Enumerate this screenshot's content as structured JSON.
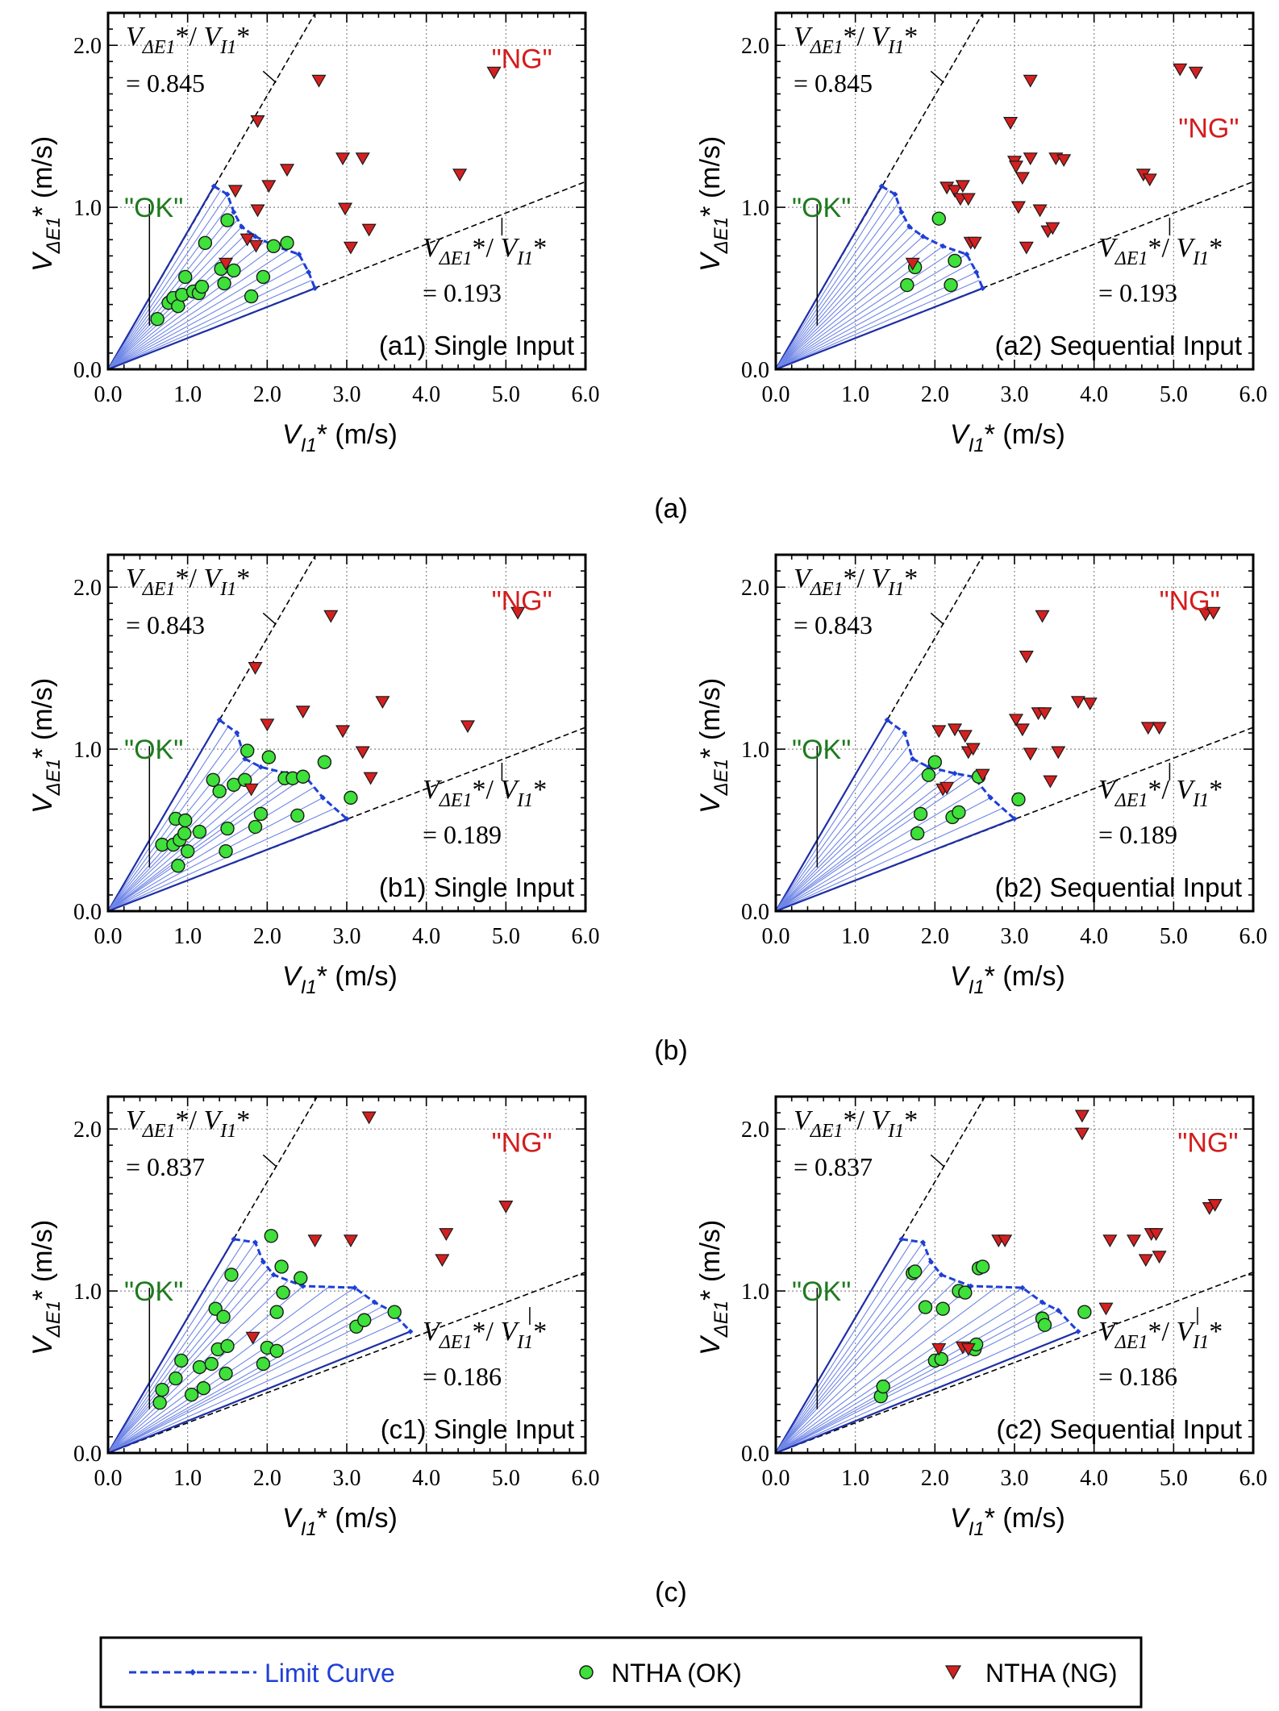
{
  "axes_text": {
    "x_tick_labels": [
      "0.0",
      "1.0",
      "2.0",
      "3.0",
      "4.0",
      "5.0",
      "6.0"
    ],
    "y_tick_labels": [
      "0.0",
      "1.0",
      "2.0"
    ],
    "x_label_main": "V",
    "x_label_sub": "I1",
    "x_label_rest": "* (m/s)",
    "y_label_main": "V",
    "y_label_sub": "ΔE1",
    "y_label_rest": "* (m/s)",
    "ratio_main": "V",
    "ratio_sub_e": "ΔE1",
    "ratio_mid": "*/ ",
    "ratio_sub_i": "I1",
    "ratio_star": "*",
    "ok_label": "\"OK\"",
    "ng_label": "\"NG\""
  },
  "group_labels": [
    "(a)",
    "(b)",
    "(c)"
  ],
  "legend": {
    "limit_curve": "Limit Curve",
    "ok": "NTHA (OK)",
    "ng": "NTHA (NG)"
  },
  "colors": {
    "limit_curve": "#1f3fd6",
    "fan_lines": "#6f86e6",
    "ok_fill": "#3ee03a",
    "ng_fill": "#d42020",
    "ok_text": "#1e7a1e",
    "ng_text": "#d41c1c",
    "grid": "#888888",
    "ref_line": "#000000"
  },
  "chart_data": [
    {
      "type": "scatter",
      "panel_title": "(a1) Single Input",
      "xlim": [
        0,
        6
      ],
      "ylim": [
        0,
        2.2
      ],
      "grid": true,
      "upper_ratio": "= 0.845",
      "lower_ratio": "= 0.193",
      "upper_slope": 0.845,
      "lower_slope": 0.193,
      "limit_curve": [
        [
          1.33,
          1.13
        ],
        [
          1.5,
          1.08
        ],
        [
          1.58,
          0.97
        ],
        [
          1.68,
          0.88
        ],
        [
          1.85,
          0.82
        ],
        [
          2.1,
          0.76
        ],
        [
          2.4,
          0.71
        ],
        [
          2.52,
          0.6
        ],
        [
          2.6,
          0.5
        ]
      ],
      "ok_points": [
        [
          0.62,
          0.31
        ],
        [
          0.76,
          0.41
        ],
        [
          0.82,
          0.44
        ],
        [
          0.88,
          0.39
        ],
        [
          0.93,
          0.46
        ],
        [
          0.97,
          0.57
        ],
        [
          1.07,
          0.48
        ],
        [
          1.14,
          0.47
        ],
        [
          1.18,
          0.51
        ],
        [
          1.22,
          0.78
        ],
        [
          1.42,
          0.62
        ],
        [
          1.46,
          0.53
        ],
        [
          1.5,
          0.92
        ],
        [
          1.58,
          0.61
        ],
        [
          1.8,
          0.45
        ],
        [
          1.95,
          0.57
        ],
        [
          2.08,
          0.76
        ],
        [
          2.25,
          0.78
        ]
      ],
      "ng_points": [
        [
          1.48,
          0.65
        ],
        [
          1.6,
          1.1
        ],
        [
          1.75,
          0.8
        ],
        [
          1.86,
          0.76
        ],
        [
          1.88,
          0.98
        ],
        [
          1.88,
          1.53
        ],
        [
          2.02,
          1.13
        ],
        [
          2.25,
          1.23
        ],
        [
          2.65,
          1.78
        ],
        [
          2.95,
          1.3
        ],
        [
          2.98,
          0.99
        ],
        [
          3.05,
          0.75
        ],
        [
          3.2,
          1.3
        ],
        [
          3.28,
          0.86
        ],
        [
          4.42,
          1.2
        ],
        [
          4.85,
          1.83
        ]
      ]
    },
    {
      "type": "scatter",
      "panel_title": "(a2) Sequential Input",
      "xlim": [
        0,
        6
      ],
      "ylim": [
        0,
        2.2
      ],
      "grid": true,
      "upper_ratio": "= 0.845",
      "lower_ratio": "= 0.193",
      "upper_slope": 0.845,
      "lower_slope": 0.193,
      "limit_curve": [
        [
          1.33,
          1.13
        ],
        [
          1.5,
          1.08
        ],
        [
          1.58,
          0.97
        ],
        [
          1.68,
          0.88
        ],
        [
          1.85,
          0.82
        ],
        [
          2.1,
          0.76
        ],
        [
          2.4,
          0.71
        ],
        [
          2.52,
          0.6
        ],
        [
          2.6,
          0.5
        ]
      ],
      "ok_points": [
        [
          1.65,
          0.52
        ],
        [
          1.75,
          0.63
        ],
        [
          2.05,
          0.93
        ],
        [
          2.2,
          0.52
        ],
        [
          2.25,
          0.67
        ]
      ],
      "ng_points": [
        [
          1.72,
          0.65
        ],
        [
          2.15,
          1.12
        ],
        [
          2.25,
          1.1
        ],
        [
          2.32,
          1.05
        ],
        [
          2.35,
          1.13
        ],
        [
          2.42,
          1.05
        ],
        [
          2.45,
          0.78
        ],
        [
          2.5,
          0.78
        ],
        [
          2.95,
          1.52
        ],
        [
          3.0,
          1.28
        ],
        [
          3.02,
          1.25
        ],
        [
          3.05,
          1.0
        ],
        [
          3.1,
          1.18
        ],
        [
          3.15,
          0.75
        ],
        [
          3.2,
          1.3
        ],
        [
          3.2,
          1.78
        ],
        [
          3.32,
          0.98
        ],
        [
          3.42,
          0.85
        ],
        [
          3.48,
          0.87
        ],
        [
          3.52,
          1.3
        ],
        [
          3.62,
          1.29
        ],
        [
          4.62,
          1.2
        ],
        [
          4.7,
          1.17
        ],
        [
          5.08,
          1.85
        ],
        [
          5.28,
          1.83
        ]
      ]
    },
    {
      "type": "scatter",
      "panel_title": "(b1) Single Input",
      "xlim": [
        0,
        6
      ],
      "ylim": [
        0,
        2.2
      ],
      "grid": true,
      "upper_ratio": "= 0.843",
      "lower_ratio": "= 0.189",
      "upper_slope": 0.843,
      "lower_slope": 0.189,
      "limit_curve": [
        [
          1.4,
          1.18
        ],
        [
          1.62,
          1.1
        ],
        [
          1.72,
          0.94
        ],
        [
          1.92,
          0.89
        ],
        [
          2.25,
          0.85
        ],
        [
          2.48,
          0.83
        ],
        [
          2.7,
          0.7
        ],
        [
          3.0,
          0.57
        ]
      ],
      "ok_points": [
        [
          0.68,
          0.41
        ],
        [
          0.82,
          0.41
        ],
        [
          0.85,
          0.57
        ],
        [
          0.88,
          0.28
        ],
        [
          0.9,
          0.44
        ],
        [
          0.96,
          0.48
        ],
        [
          0.97,
          0.56
        ],
        [
          1.0,
          0.37
        ],
        [
          1.15,
          0.49
        ],
        [
          1.32,
          0.81
        ],
        [
          1.4,
          0.74
        ],
        [
          1.48,
          0.37
        ],
        [
          1.5,
          0.51
        ],
        [
          1.58,
          0.78
        ],
        [
          1.72,
          0.81
        ],
        [
          1.75,
          0.99
        ],
        [
          1.85,
          0.52
        ],
        [
          1.92,
          0.6
        ],
        [
          2.02,
          0.95
        ],
        [
          2.22,
          0.82
        ],
        [
          2.32,
          0.82
        ],
        [
          2.38,
          0.59
        ],
        [
          2.45,
          0.83
        ],
        [
          2.72,
          0.92
        ],
        [
          3.05,
          0.7
        ]
      ],
      "ng_points": [
        [
          1.8,
          0.75
        ],
        [
          1.85,
          1.5
        ],
        [
          2.0,
          1.15
        ],
        [
          2.45,
          1.23
        ],
        [
          2.8,
          1.82
        ],
        [
          2.95,
          1.11
        ],
        [
          3.2,
          0.98
        ],
        [
          3.3,
          0.82
        ],
        [
          3.45,
          1.29
        ],
        [
          4.52,
          1.14
        ],
        [
          5.15,
          1.84
        ]
      ]
    },
    {
      "type": "scatter",
      "panel_title": "(b2) Sequential Input",
      "xlim": [
        0,
        6
      ],
      "ylim": [
        0,
        2.2
      ],
      "grid": true,
      "upper_ratio": "= 0.843",
      "lower_ratio": "= 0.189",
      "upper_slope": 0.843,
      "lower_slope": 0.189,
      "limit_curve": [
        [
          1.4,
          1.18
        ],
        [
          1.62,
          1.1
        ],
        [
          1.72,
          0.94
        ],
        [
          1.92,
          0.89
        ],
        [
          2.25,
          0.85
        ],
        [
          2.48,
          0.83
        ],
        [
          2.7,
          0.7
        ],
        [
          3.0,
          0.57
        ]
      ],
      "ok_points": [
        [
          1.78,
          0.48
        ],
        [
          1.82,
          0.6
        ],
        [
          1.92,
          0.84
        ],
        [
          2.0,
          0.92
        ],
        [
          2.22,
          0.58
        ],
        [
          2.3,
          0.61
        ],
        [
          2.55,
          0.83
        ],
        [
          3.05,
          0.69
        ]
      ],
      "ng_points": [
        [
          2.05,
          1.11
        ],
        [
          2.1,
          0.75
        ],
        [
          2.15,
          0.76
        ],
        [
          2.25,
          1.12
        ],
        [
          2.38,
          1.08
        ],
        [
          2.42,
          0.98
        ],
        [
          2.48,
          1.0
        ],
        [
          2.6,
          0.84
        ],
        [
          3.02,
          1.18
        ],
        [
          3.1,
          1.12
        ],
        [
          3.15,
          1.57
        ],
        [
          3.2,
          0.97
        ],
        [
          3.3,
          1.22
        ],
        [
          3.35,
          1.82
        ],
        [
          3.38,
          1.22
        ],
        [
          3.45,
          0.8
        ],
        [
          3.55,
          0.98
        ],
        [
          3.8,
          1.29
        ],
        [
          3.95,
          1.28
        ],
        [
          4.68,
          1.13
        ],
        [
          4.82,
          1.13
        ],
        [
          5.4,
          1.83
        ],
        [
          5.5,
          1.84
        ]
      ]
    },
    {
      "type": "scatter",
      "panel_title": "(c1) Single Input",
      "xlim": [
        0,
        6
      ],
      "ylim": [
        0,
        2.2
      ],
      "grid": true,
      "upper_ratio": "= 0.837",
      "lower_ratio": "= 0.186",
      "upper_slope": 0.837,
      "lower_slope": 0.186,
      "limit_curve": [
        [
          1.58,
          1.32
        ],
        [
          1.85,
          1.3
        ],
        [
          1.95,
          1.18
        ],
        [
          2.08,
          1.1
        ],
        [
          2.45,
          1.03
        ],
        [
          3.1,
          1.02
        ],
        [
          3.35,
          0.93
        ],
        [
          3.55,
          0.88
        ],
        [
          3.8,
          0.75
        ]
      ],
      "ok_points": [
        [
          0.65,
          0.31
        ],
        [
          0.68,
          0.39
        ],
        [
          0.85,
          0.46
        ],
        [
          0.92,
          0.57
        ],
        [
          1.05,
          0.36
        ],
        [
          1.15,
          0.53
        ],
        [
          1.2,
          0.4
        ],
        [
          1.3,
          0.55
        ],
        [
          1.35,
          0.89
        ],
        [
          1.38,
          0.64
        ],
        [
          1.45,
          0.84
        ],
        [
          1.48,
          0.49
        ],
        [
          1.5,
          0.66
        ],
        [
          1.55,
          1.1
        ],
        [
          1.95,
          0.55
        ],
        [
          2.0,
          0.65
        ],
        [
          2.05,
          1.34
        ],
        [
          2.12,
          0.63
        ],
        [
          2.12,
          0.87
        ],
        [
          2.18,
          1.15
        ],
        [
          2.2,
          0.99
        ],
        [
          2.42,
          1.08
        ],
        [
          3.12,
          0.78
        ],
        [
          3.22,
          0.82
        ],
        [
          3.6,
          0.87
        ]
      ],
      "ng_points": [
        [
          1.82,
          0.71
        ],
        [
          2.6,
          1.31
        ],
        [
          3.05,
          1.31
        ],
        [
          3.28,
          2.07
        ],
        [
          4.2,
          1.19
        ],
        [
          4.25,
          1.35
        ],
        [
          5.0,
          1.52
        ]
      ]
    },
    {
      "type": "scatter",
      "panel_title": "(c2) Sequential Input",
      "xlim": [
        0,
        6
      ],
      "ylim": [
        0,
        2.2
      ],
      "grid": true,
      "upper_ratio": "= 0.837",
      "lower_ratio": "= 0.186",
      "upper_slope": 0.837,
      "lower_slope": 0.186,
      "limit_curve": [
        [
          1.58,
          1.32
        ],
        [
          1.85,
          1.3
        ],
        [
          1.95,
          1.18
        ],
        [
          2.08,
          1.1
        ],
        [
          2.45,
          1.03
        ],
        [
          3.1,
          1.02
        ],
        [
          3.35,
          0.93
        ],
        [
          3.55,
          0.88
        ],
        [
          3.8,
          0.75
        ]
      ],
      "ok_points": [
        [
          1.32,
          0.35
        ],
        [
          1.35,
          0.41
        ],
        [
          1.72,
          1.11
        ],
        [
          1.75,
          1.12
        ],
        [
          1.88,
          0.9
        ],
        [
          2.0,
          0.57
        ],
        [
          2.08,
          0.58
        ],
        [
          2.1,
          0.89
        ],
        [
          2.3,
          1.0
        ],
        [
          2.38,
          0.99
        ],
        [
          2.5,
          0.64
        ],
        [
          2.52,
          0.67
        ],
        [
          2.55,
          1.14
        ],
        [
          2.6,
          1.15
        ],
        [
          3.35,
          0.83
        ],
        [
          3.38,
          0.79
        ],
        [
          3.88,
          0.87
        ]
      ],
      "ng_points": [
        [
          2.05,
          0.64
        ],
        [
          2.35,
          0.65
        ],
        [
          2.42,
          0.64
        ],
        [
          2.8,
          1.31
        ],
        [
          2.88,
          1.31
        ],
        [
          3.85,
          2.08
        ],
        [
          3.85,
          1.97
        ],
        [
          4.15,
          0.89
        ],
        [
          4.2,
          1.31
        ],
        [
          4.5,
          1.31
        ],
        [
          4.65,
          1.19
        ],
        [
          4.72,
          1.35
        ],
        [
          4.78,
          1.35
        ],
        [
          4.82,
          1.21
        ],
        [
          5.45,
          1.51
        ],
        [
          5.52,
          1.53
        ]
      ]
    }
  ]
}
